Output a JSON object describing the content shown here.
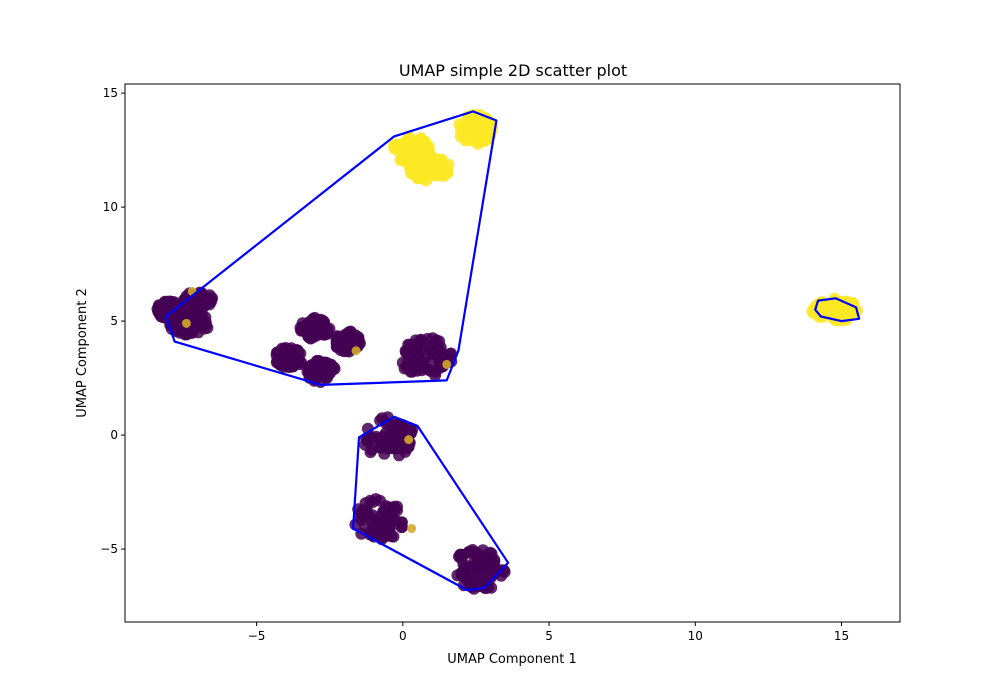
{
  "chart_data": {
    "type": "scatter",
    "title": "UMAP simple 2D scatter plot",
    "xlabel": "UMAP Component 1",
    "ylabel": "UMAP Component 2",
    "xlim": [
      -9.5,
      17
    ],
    "ylim": [
      -8.2,
      15.4
    ],
    "xticks": [
      {
        "value": -5,
        "label": "−5"
      },
      {
        "value": 0,
        "label": "0"
      },
      {
        "value": 5,
        "label": "5"
      },
      {
        "value": 10,
        "label": "10"
      },
      {
        "value": 15,
        "label": "15"
      }
    ],
    "yticks": [
      {
        "value": -5,
        "label": "−5"
      },
      {
        "value": 0,
        "label": "0"
      },
      {
        "value": 5,
        "label": "5"
      },
      {
        "value": 10,
        "label": "10"
      },
      {
        "value": 15,
        "label": "15"
      }
    ],
    "grid": false,
    "colors": {
      "class_0": "#440154",
      "class_1": "#fde725",
      "hull": "#0000ff"
    },
    "clusters": [
      {
        "class": 0,
        "cx": -8.0,
        "cy": 5.5,
        "rx": 0.4,
        "ry": 0.4
      },
      {
        "class": 0,
        "cx": -7.3,
        "cy": 4.9,
        "rx": 0.7,
        "ry": 0.5
      },
      {
        "class": 0,
        "cx": -7.0,
        "cy": 5.9,
        "rx": 0.5,
        "ry": 0.4
      },
      {
        "class": 0,
        "cx": -3.9,
        "cy": 3.4,
        "rx": 0.5,
        "ry": 0.45
      },
      {
        "class": 0,
        "cx": -3.0,
        "cy": 4.7,
        "rx": 0.5,
        "ry": 0.5
      },
      {
        "class": 0,
        "cx": -2.8,
        "cy": 2.8,
        "rx": 0.5,
        "ry": 0.5
      },
      {
        "class": 0,
        "cx": -1.9,
        "cy": 4.1,
        "rx": 0.45,
        "ry": 0.45
      },
      {
        "class": 0,
        "cx": 0.8,
        "cy": 3.4,
        "rx": 0.9,
        "ry": 0.9
      },
      {
        "class": 0,
        "cx": -0.5,
        "cy": -0.1,
        "rx": 0.9,
        "ry": 0.9
      },
      {
        "class": 0,
        "cx": -0.8,
        "cy": -3.7,
        "rx": 0.9,
        "ry": 0.9
      },
      {
        "class": 0,
        "cx": 2.6,
        "cy": -5.9,
        "rx": 0.95,
        "ry": 0.95
      },
      {
        "class": 1,
        "cx": 0.3,
        "cy": 12.5,
        "rx": 0.65,
        "ry": 0.6
      },
      {
        "class": 1,
        "cx": 0.9,
        "cy": 11.7,
        "rx": 0.7,
        "ry": 0.55
      },
      {
        "class": 1,
        "cx": 2.5,
        "cy": 13.4,
        "rx": 0.6,
        "ry": 0.7
      },
      {
        "class": 1,
        "cx": 14.8,
        "cy": 5.5,
        "rx": 0.8,
        "ry": 0.5
      }
    ],
    "outliers": [
      {
        "class": 1,
        "x": -7.4,
        "y": 4.9
      },
      {
        "class": 1,
        "x": 1.5,
        "y": 3.1
      },
      {
        "class": 1,
        "x": 0.2,
        "y": -0.2
      },
      {
        "class": 1,
        "x": 0.3,
        "y": -4.1
      },
      {
        "class": 1,
        "x": -7.2,
        "y": 6.3
      },
      {
        "class": 1,
        "x": -1.6,
        "y": 3.7
      }
    ],
    "hulls": [
      [
        [
          -0.3,
          13.1
        ],
        [
          2.4,
          14.2
        ],
        [
          3.2,
          13.8
        ],
        [
          1.9,
          3.7
        ],
        [
          1.5,
          2.4
        ],
        [
          -2.8,
          2.2
        ],
        [
          -7.8,
          4.1
        ],
        [
          -8.1,
          5.2
        ]
      ],
      [
        [
          -0.3,
          0.8
        ],
        [
          0.5,
          0.4
        ],
        [
          3.6,
          -5.6
        ],
        [
          2.8,
          -6.7
        ],
        [
          2.2,
          -6.8
        ],
        [
          -1.7,
          -4.1
        ],
        [
          -1.5,
          -0.1
        ]
      ],
      [
        [
          14.1,
          5.5
        ],
        [
          14.2,
          5.9
        ],
        [
          14.8,
          6.0
        ],
        [
          15.5,
          5.6
        ],
        [
          15.6,
          5.1
        ],
        [
          15.0,
          5.0
        ],
        [
          14.3,
          5.2
        ]
      ]
    ]
  }
}
